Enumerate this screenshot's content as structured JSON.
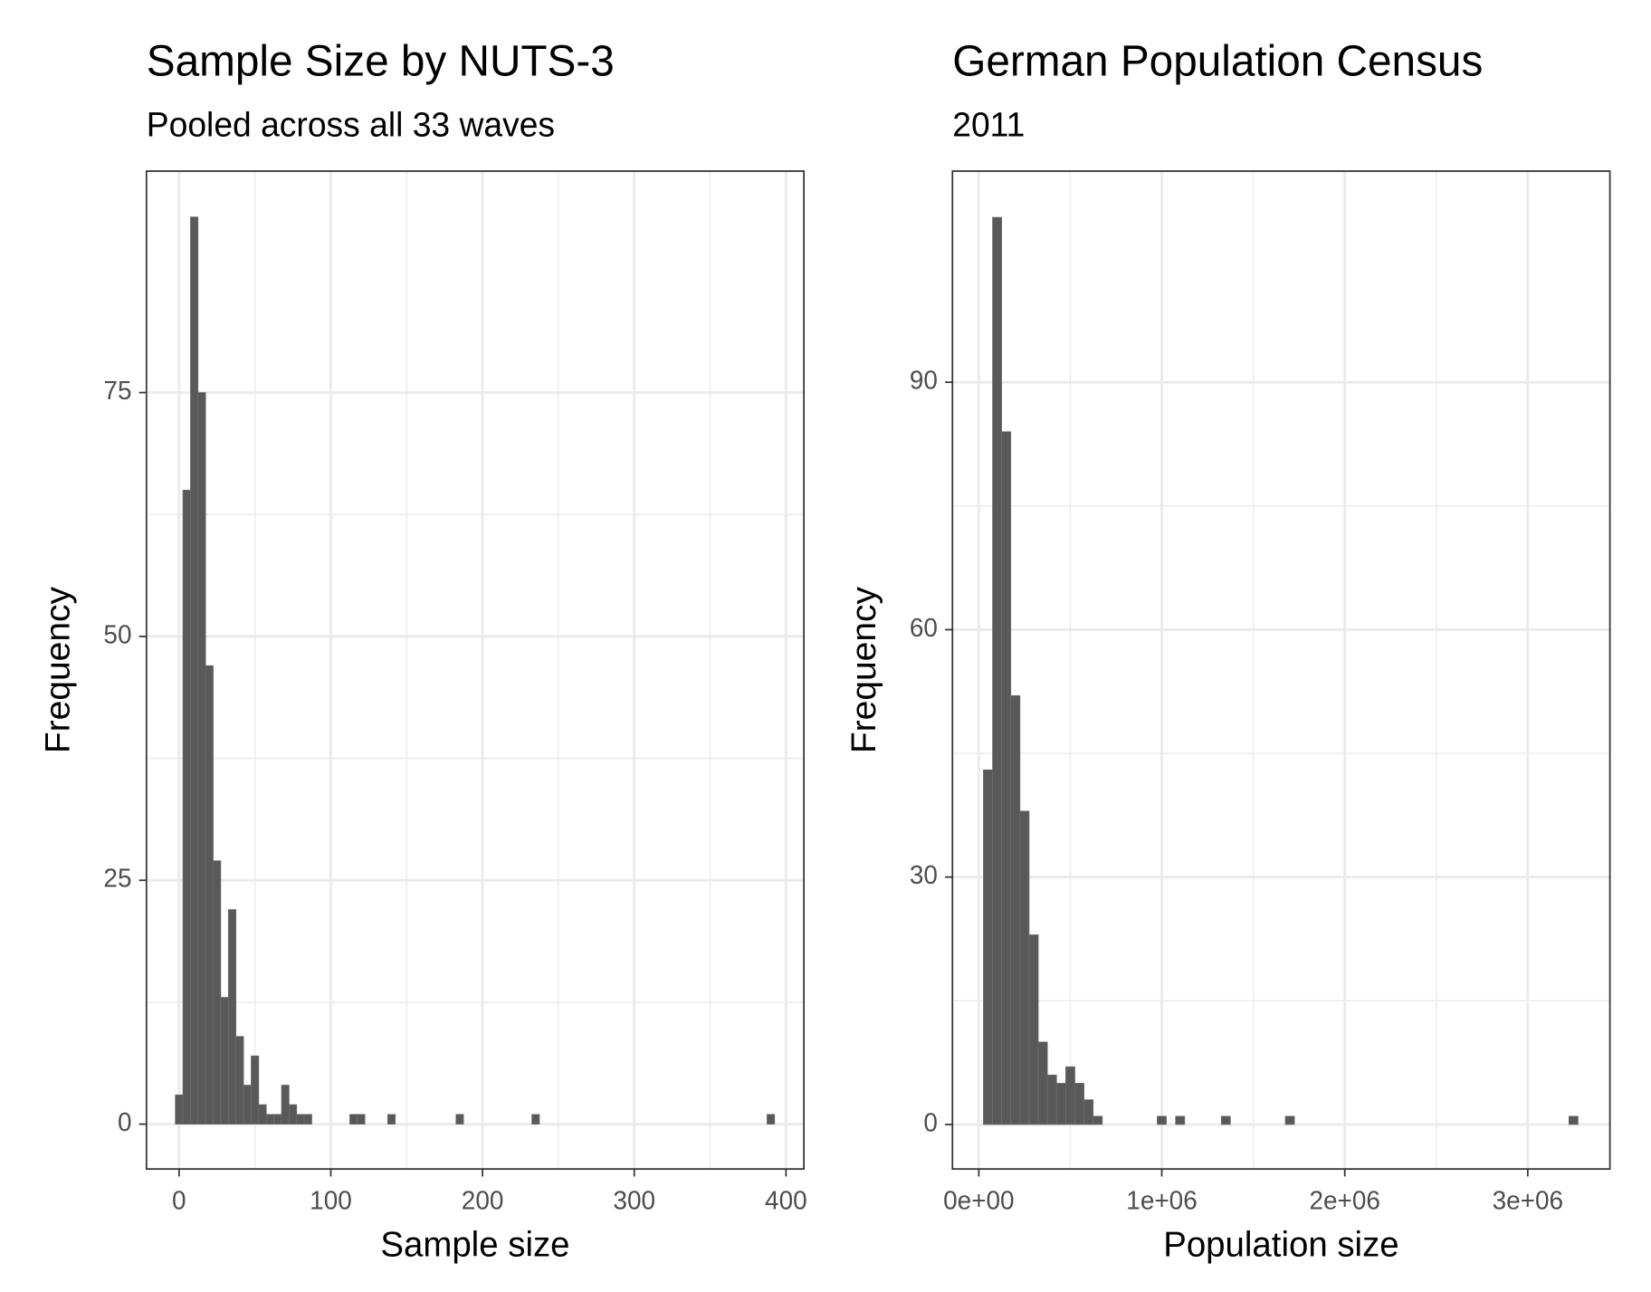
{
  "chart_data": [
    {
      "type": "histogram",
      "title": "Sample Size by NUTS-3",
      "subtitle": "Pooled across all 33 waves",
      "x_label": "Sample size",
      "y_label": "Frequency",
      "color": "#595959",
      "bins": [
        -2.5,
        2.5,
        7.5,
        12.5,
        17.5,
        22.5,
        27.5,
        32.5,
        37.5,
        42.5,
        47.5,
        52.5,
        57.5,
        62.5,
        67.5,
        72.5,
        77.5,
        82.5,
        87.5,
        92.5,
        97.5,
        102.5,
        107.5,
        112.5,
        117.5,
        122.5,
        127.5,
        132.5,
        137.5,
        142.5,
        147.5,
        152.5,
        157.5,
        162.5,
        167.5,
        172.5,
        177.5,
        182.5,
        187.5,
        192.5,
        197.5,
        202.5,
        207.5,
        212.5,
        217.5,
        222.5,
        227.5,
        232.5,
        237.5,
        242.5,
        247.5,
        252.5,
        257.5,
        262.5,
        267.5,
        272.5,
        277.5,
        282.5,
        287.5,
        292.5,
        297.5,
        302.5,
        307.5,
        312.5,
        317.5,
        322.5,
        327.5,
        332.5,
        337.5,
        342.5,
        347.5,
        352.5,
        357.5,
        362.5,
        367.5,
        372.5,
        377.5,
        382.5,
        387.5,
        392.5
      ],
      "values": [
        3,
        65,
        93,
        75,
        47,
        27,
        13,
        22,
        9,
        4,
        7,
        2,
        1,
        1,
        4,
        2,
        1,
        1,
        0,
        0,
        0,
        0,
        0,
        1,
        1,
        0,
        0,
        0,
        1,
        0,
        0,
        0,
        0,
        0,
        0,
        0,
        0,
        1,
        0,
        0,
        0,
        0,
        0,
        0,
        0,
        0,
        0,
        1,
        0,
        0,
        0,
        0,
        0,
        0,
        0,
        0,
        0,
        0,
        0,
        0,
        0,
        0,
        0,
        0,
        0,
        0,
        0,
        0,
        0,
        0,
        0,
        0,
        0,
        0,
        0,
        0,
        0,
        0,
        1
      ],
      "xlim": [
        -21.5,
        411.8
      ],
      "xticks": [
        0,
        100,
        200,
        300,
        400
      ],
      "ylim": [
        -4.6,
        97.7
      ],
      "yticks": [
        0,
        25,
        50,
        75
      ],
      "grid": true,
      "minor_grid": true
    },
    {
      "type": "histogram",
      "title": "German Population Census",
      "subtitle": "2011",
      "x_label": "Population size",
      "y_label": "Frequency",
      "color": "#595959",
      "bins": [
        25000,
        75000,
        125000,
        175000,
        225000,
        275000,
        325000,
        375000,
        425000,
        475000,
        525000,
        575000,
        625000,
        675000,
        725000,
        775000,
        825000,
        875000,
        925000,
        975000,
        1025000,
        1075000,
        1125000,
        1175000,
        1225000,
        1275000,
        1325000,
        1375000,
        1425000,
        1475000,
        1525000,
        1575000,
        1625000,
        1675000,
        1725000,
        1775000,
        1825000,
        1875000,
        1925000,
        1975000,
        2025000,
        2075000,
        2125000,
        2175000,
        2225000,
        2275000,
        2325000,
        2375000,
        2425000,
        2475000,
        2525000,
        2575000,
        2625000,
        2675000,
        2725000,
        2775000,
        2825000,
        2875000,
        2925000,
        2975000,
        3025000,
        3075000,
        3125000,
        3175000,
        3225000,
        3275000
      ],
      "values": [
        43,
        110,
        84,
        52,
        38,
        23,
        10,
        6,
        5,
        7,
        5,
        3,
        1,
        0,
        0,
        0,
        0,
        0,
        0,
        1,
        0,
        1,
        0,
        0,
        0,
        0,
        1,
        0,
        0,
        0,
        0,
        0,
        0,
        1,
        0,
        0,
        0,
        0,
        0,
        0,
        0,
        0,
        0,
        0,
        0,
        0,
        0,
        0,
        0,
        0,
        0,
        0,
        0,
        0,
        0,
        0,
        0,
        0,
        0,
        0,
        0,
        0,
        0,
        0,
        1
      ],
      "xlim": [
        -144000,
        3449000
      ],
      "xticks": [
        {
          "value": 0,
          "label": "0e+00"
        },
        {
          "value": 1000000,
          "label": "1e+06"
        },
        {
          "value": 2000000,
          "label": "2e+06"
        },
        {
          "value": 3000000,
          "label": "3e+06"
        }
      ],
      "ylim": [
        -5.4,
        115.6
      ],
      "yticks": [
        0,
        30,
        60,
        90
      ],
      "grid": true,
      "minor_grid": true
    }
  ]
}
